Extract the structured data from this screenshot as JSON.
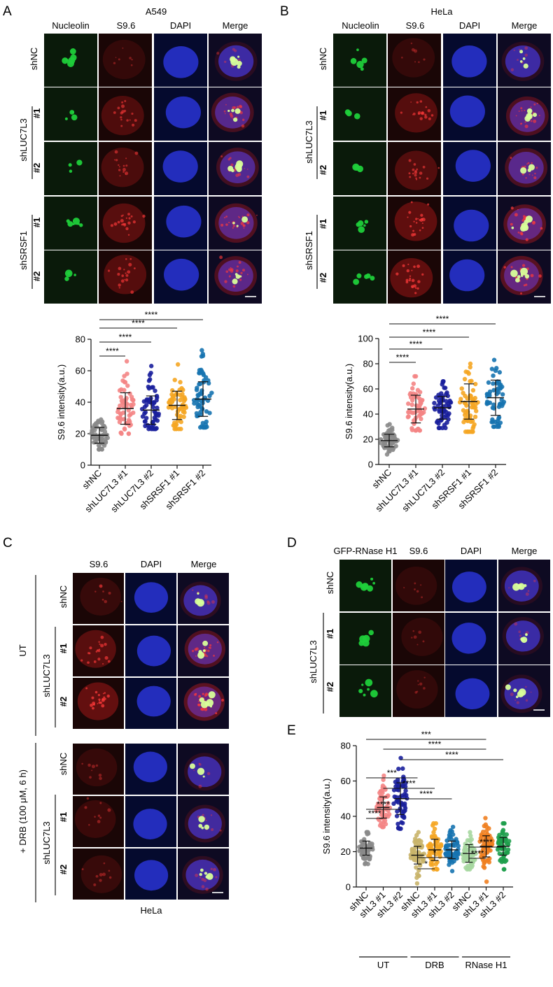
{
  "colors": {
    "nucleolin": "#1fcf3a",
    "s96": "#d81e1e",
    "dapi": "#2a36e0",
    "panel_bg_green": "#0a1a0a",
    "panel_bg_red": "#1a0606",
    "panel_bg_blue": "#050a2e",
    "gray": "#8a8a8a",
    "pink": "#f48585",
    "navy": "#1a1f9c",
    "orange": "#f5a623",
    "teal": "#1673b0",
    "khaki": "#c9b46a",
    "dark_orange": "#f08020",
    "pale_green": "#a6d7a0",
    "green": "#1f9e4d"
  },
  "panelA": {
    "letter": "A",
    "cell_line": "A549",
    "columns": [
      "Nucleolin",
      "S9.6",
      "DAPI",
      "Merge"
    ],
    "row_labels": {
      "shnc": "shNC",
      "luc": "shLUC7L3",
      "srsf": "shSRSF1",
      "n1": "#1",
      "n2": "#2"
    },
    "chart_data": {
      "type": "scatter",
      "ylabel": "S9.6 intensity(a.u.)",
      "ylim": [
        0,
        80
      ],
      "yticks": [
        "0",
        "20",
        "40",
        "60",
        "80"
      ],
      "categories": [
        "shNC",
        "shLUC7L3 #1",
        "shLUC7L3 #2",
        "shSRSF1 #1",
        "shSRSF1 #2"
      ],
      "series": [
        {
          "mean": 19,
          "sd": 5,
          "min": 10,
          "max": 29,
          "color": "gray"
        },
        {
          "mean": 36,
          "sd": 10,
          "min": 20,
          "max": 66,
          "color": "pink"
        },
        {
          "mean": 35,
          "sd": 9,
          "min": 23,
          "max": 63,
          "color": "navy"
        },
        {
          "mean": 38,
          "sd": 9,
          "min": 23,
          "max": 64,
          "color": "orange"
        },
        {
          "mean": 42,
          "sd": 11,
          "min": 24,
          "max": 73,
          "color": "teal"
        }
      ],
      "significance": [
        {
          "from": 0,
          "to": 1,
          "label": "****"
        },
        {
          "from": 0,
          "to": 2,
          "label": "****"
        },
        {
          "from": 0,
          "to": 3,
          "label": "****"
        },
        {
          "from": 0,
          "to": 4,
          "label": "****"
        }
      ]
    }
  },
  "panelB": {
    "letter": "B",
    "cell_line": "HeLa",
    "columns": [
      "Nucleolin",
      "S9.6",
      "DAPI",
      "Merge"
    ],
    "row_labels": {
      "shnc": "shNC",
      "luc": "shLUC7L3",
      "srsf": "shSRSF1",
      "n1": "#1",
      "n2": "#2"
    },
    "chart_data": {
      "type": "scatter",
      "ylabel": "S9.6 intensity(a.u.)",
      "ylim": [
        0,
        100
      ],
      "yticks": [
        "0",
        "20",
        "40",
        "60",
        "80",
        "100"
      ],
      "categories": [
        "shNC",
        "shLUC7L3 #1",
        "shLUC7L3 #2",
        "shSRSF1 #1",
        "shSRSF1 #2"
      ],
      "series": [
        {
          "mean": 19,
          "sd": 5,
          "min": 8,
          "max": 32,
          "color": "gray"
        },
        {
          "mean": 44,
          "sd": 11,
          "min": 27,
          "max": 70,
          "color": "pink"
        },
        {
          "mean": 45,
          "sd": 9,
          "min": 29,
          "max": 66,
          "color": "navy"
        },
        {
          "mean": 50,
          "sd": 14,
          "min": 26,
          "max": 80,
          "color": "orange"
        },
        {
          "mean": 53,
          "sd": 14,
          "min": 30,
          "max": 83,
          "color": "teal"
        }
      ],
      "significance": [
        {
          "from": 0,
          "to": 1,
          "label": "****"
        },
        {
          "from": 0,
          "to": 2,
          "label": "****"
        },
        {
          "from": 0,
          "to": 3,
          "label": "****"
        },
        {
          "from": 0,
          "to": 4,
          "label": "****"
        }
      ]
    }
  },
  "panelC": {
    "letter": "C",
    "columns": [
      "S9.6",
      "DAPI",
      "Merge"
    ],
    "group_ut": "UT",
    "group_drb": "+ DRB (100 μM, 6 h)",
    "row_labels": {
      "shnc": "shNC",
      "luc": "shLUC7L3",
      "n1": "#1",
      "n2": "#2"
    },
    "footer": "HeLa"
  },
  "panelD": {
    "letter": "D",
    "columns": [
      "GFP-RNase H1",
      "S9.6",
      "DAPI",
      "Merge"
    ],
    "row_labels": {
      "shnc": "shNC",
      "luc": "shLUC7L3",
      "n1": "#1",
      "n2": "#2"
    }
  },
  "panelE": {
    "letter": "E",
    "chart_data": {
      "type": "scatter",
      "ylabel": "S9.6 intensity(a.u.)",
      "ylim": [
        0,
        80
      ],
      "yticks": [
        "0",
        "20",
        "40",
        "60",
        "80"
      ],
      "categories": [
        "shNC",
        "shL3 #1",
        "shL3 #2",
        "shNC",
        "shL3 #1",
        "shL3 #2",
        "shNC",
        "shL3 #1",
        "shL3 #2"
      ],
      "groups": [
        {
          "label": "UT",
          "from": 0,
          "to": 2
        },
        {
          "label": "DRB",
          "from": 3,
          "to": 5
        },
        {
          "label": "RNase H1",
          "from": 6,
          "to": 8
        }
      ],
      "series": [
        {
          "mean": 22,
          "sd": 4,
          "min": 13,
          "max": 31,
          "color": "gray"
        },
        {
          "mean": 45,
          "sd": 6,
          "min": 34,
          "max": 63,
          "color": "pink"
        },
        {
          "mean": 50,
          "sd": 9,
          "min": 33,
          "max": 73,
          "color": "navy"
        },
        {
          "mean": 18,
          "sd": 5,
          "min": 2,
          "max": 31,
          "color": "khaki"
        },
        {
          "mean": 21,
          "sd": 6,
          "min": 10,
          "max": 36,
          "color": "orange"
        },
        {
          "mean": 21,
          "sd": 5,
          "min": 9,
          "max": 34,
          "color": "teal"
        },
        {
          "mean": 19,
          "sd": 5,
          "min": 10,
          "max": 31,
          "color": "pale_green"
        },
        {
          "mean": 23,
          "sd": 6,
          "min": 3,
          "max": 39,
          "color": "dark_orange"
        },
        {
          "mean": 23,
          "sd": 5,
          "min": 10,
          "max": 36,
          "color": "green"
        }
      ],
      "significance": [
        {
          "from": 0,
          "to": 7,
          "label": "***"
        },
        {
          "from": 1,
          "to": 7,
          "label": "****"
        },
        {
          "from": 2,
          "to": 8,
          "label": "****"
        },
        {
          "from": 0,
          "to": 3,
          "label": "***"
        },
        {
          "from": 1,
          "to": 4,
          "label": "****"
        },
        {
          "from": 2,
          "to": 5,
          "label": "****"
        },
        {
          "from": 0,
          "to": 2,
          "label": "****"
        },
        {
          "from": 0,
          "to": 1,
          "label": "****"
        },
        {
          "from": 3,
          "to": 5,
          "label": "*"
        },
        {
          "from": 3,
          "to": 4,
          "label": "*"
        },
        {
          "from": 6,
          "to": 8,
          "label": "****"
        },
        {
          "from": 6,
          "to": 7,
          "label": "****"
        }
      ]
    }
  }
}
